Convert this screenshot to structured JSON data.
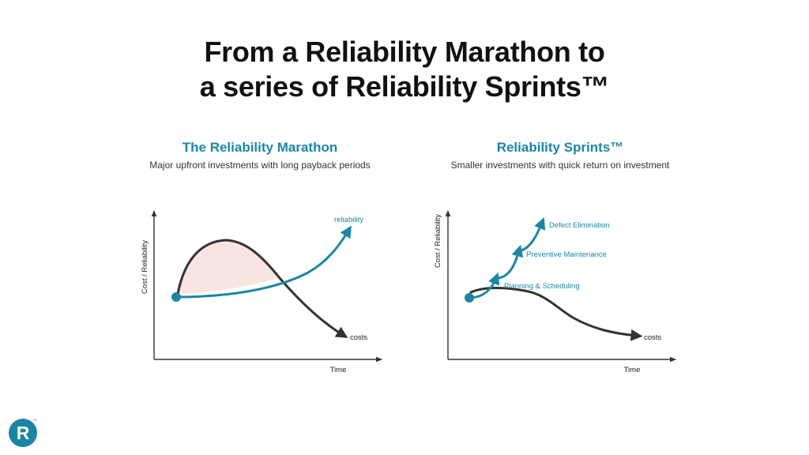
{
  "slide": {
    "title_line1": "From a Reliability Marathon to",
    "title_line2": "a series of Reliability Sprints™"
  },
  "left_panel": {
    "title": "The Reliability Marathon",
    "subtitle": "Major upfront investments with long payback periods",
    "y_axis_label": "Cost / Reliability",
    "x_axis_label": "Time",
    "curve_labels": {
      "reliability": "reliability",
      "costs": "costs"
    }
  },
  "right_panel": {
    "title": "Reliability Sprints™",
    "subtitle": "Smaller investments with quick return on investment",
    "y_axis_label": "Cost / Reliability",
    "x_axis_label": "Time",
    "sprint_labels": [
      "Planning & Scheduling",
      "Preventive Maintenance",
      "Defect Elimination"
    ],
    "curve_labels": {
      "costs": "costs"
    }
  },
  "colors": {
    "teal": "#1b86a3",
    "dark": "#333333",
    "shade": "#f6dcd8"
  },
  "logo": {
    "letter": "R",
    "mark": "™"
  }
}
